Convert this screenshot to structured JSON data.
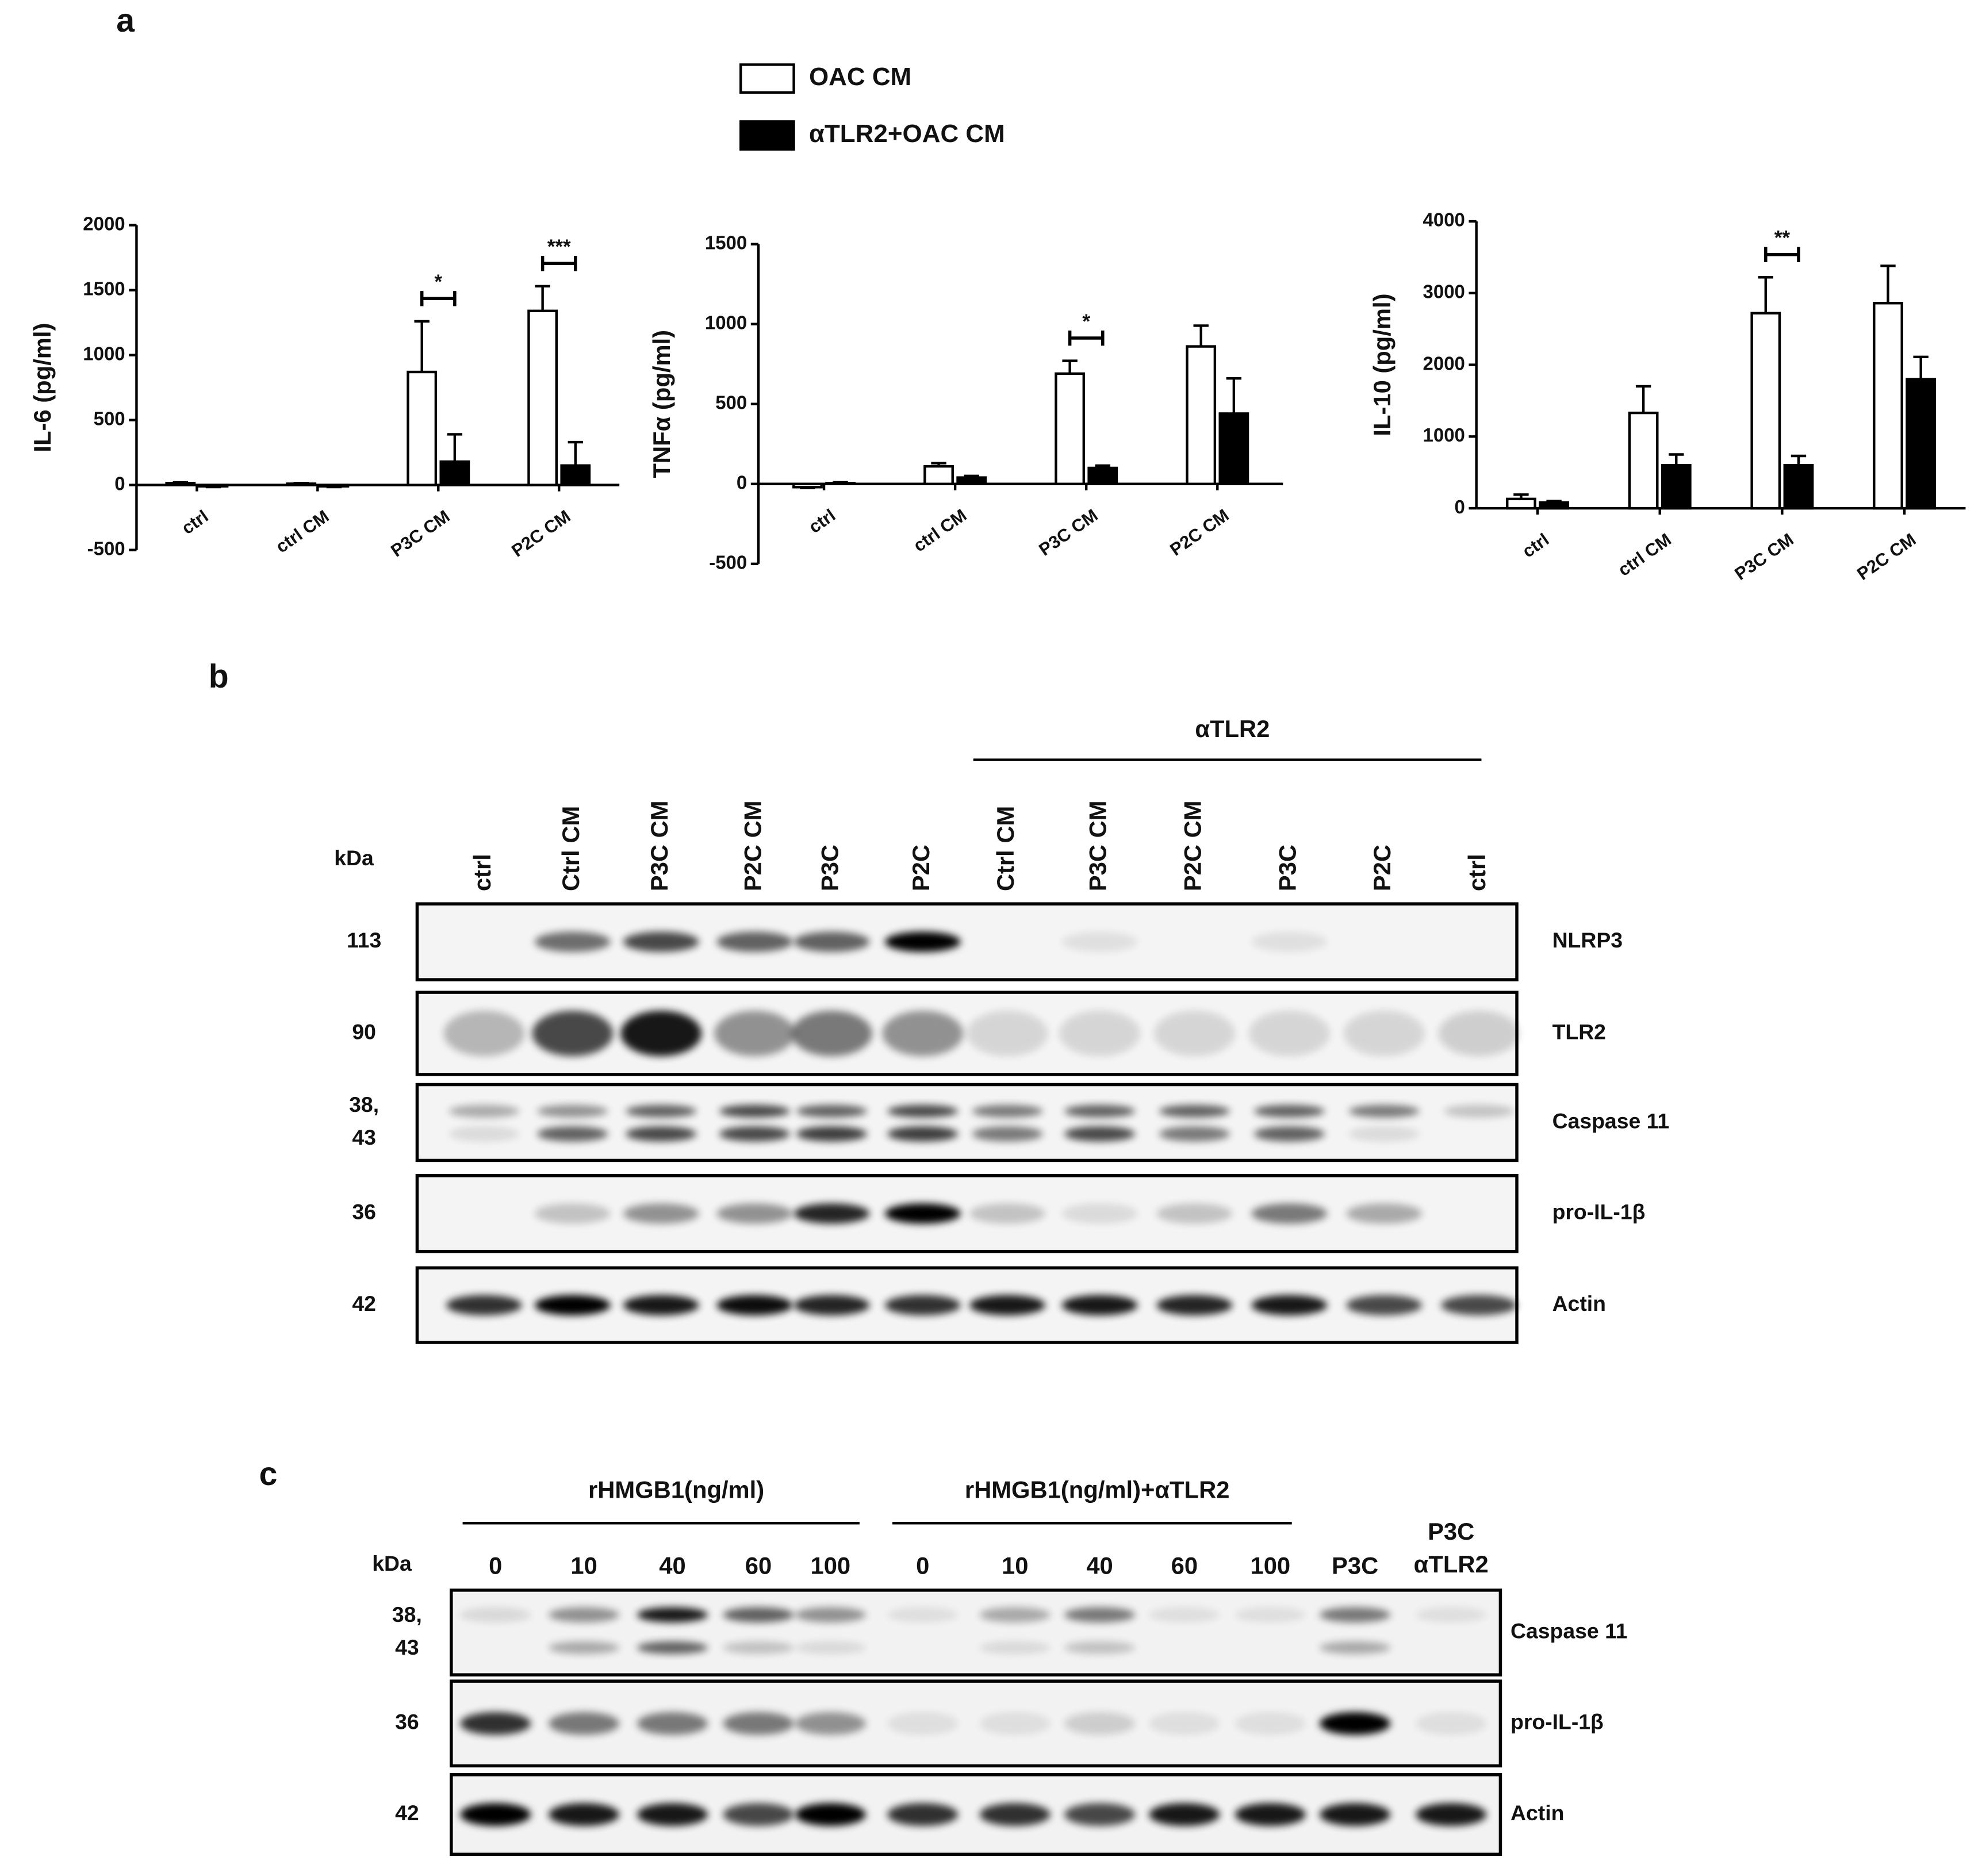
{
  "panels": [
    "a",
    "b",
    "c"
  ],
  "chart_data": [
    {
      "type": "bar",
      "ylabel": "IL-6 (pg/ml)",
      "categories": [
        "ctrl",
        "ctrl CM",
        "P3C CM",
        "P2C CM"
      ],
      "series": [
        {
          "name": "OAC CM",
          "color": "#ffffff",
          "values": [
            15,
            10,
            870,
            1340
          ],
          "errors": [
            5,
            5,
            390,
            190
          ]
        },
        {
          "name": "αTLR2+OAC CM",
          "color": "#000000",
          "values": [
            -10,
            -10,
            180,
            150
          ],
          "errors": [
            5,
            5,
            210,
            180
          ]
        }
      ],
      "ylim": [
        -500,
        2000
      ],
      "yticks": [
        -500,
        0,
        500,
        1000,
        1500,
        2000
      ],
      "annotations": [
        {
          "text": "*",
          "category": "P3C CM"
        },
        {
          "text": "***",
          "category": "P2C CM"
        }
      ]
    },
    {
      "type": "bar",
      "ylabel": "TNFα (pg/ml)",
      "categories": [
        "ctrl",
        "ctrl CM",
        "P3C CM",
        "P2C CM"
      ],
      "series": [
        {
          "color": "#ffffff",
          "values": [
            -20,
            110,
            690,
            860
          ],
          "errors": [
            5,
            20,
            80,
            130
          ]
        },
        {
          "color": "#000000",
          "values": [
            5,
            40,
            100,
            440
          ],
          "errors": [
            5,
            10,
            15,
            220
          ]
        }
      ],
      "ylim": [
        -500,
        1500
      ],
      "yticks": [
        -500,
        0,
        500,
        1000,
        1500
      ],
      "annotations": [
        {
          "text": "*",
          "category": "P3C CM"
        }
      ]
    },
    {
      "type": "bar",
      "ylabel": "IL-10 (pg/ml)",
      "categories": [
        "ctrl",
        "ctrl CM",
        "P3C CM",
        "P2C CM"
      ],
      "series": [
        {
          "color": "#ffffff",
          "values": [
            130,
            1330,
            2720,
            2860
          ],
          "errors": [
            60,
            370,
            500,
            520
          ]
        },
        {
          "color": "#000000",
          "values": [
            80,
            600,
            600,
            1800
          ],
          "errors": [
            20,
            150,
            130,
            310
          ]
        }
      ],
      "ylim": [
        0,
        4000
      ],
      "yticks": [
        0,
        1000,
        2000,
        3000,
        4000
      ],
      "annotations": [
        {
          "text": "**",
          "category": "P3C CM"
        }
      ]
    }
  ],
  "blot_b": {
    "kda_header": "kDa",
    "group_label": "αTLR2",
    "lanes": [
      "ctrl",
      "Ctrl CM",
      "P3C CM",
      "P2C CM",
      "P3C",
      "P2C",
      "Ctrl CM",
      "P3C CM",
      "P2C CM",
      "P3C",
      "P2C",
      "ctrl"
    ],
    "rows": [
      {
        "kda": [
          "113"
        ],
        "label": "NLRP3"
      },
      {
        "kda": [
          "90"
        ],
        "label": "TLR2"
      },
      {
        "kda": [
          "38,",
          "43"
        ],
        "label": "Caspase 11"
      },
      {
        "kda": [
          "36"
        ],
        "label": "pro-IL-1β"
      },
      {
        "kda": [
          "42"
        ],
        "label": "Actin"
      }
    ]
  },
  "blot_c": {
    "kda_header": "kDa",
    "groups": [
      "rHMGB1(ng/ml)",
      "rHMGB1(ng/ml)+αTLR2"
    ],
    "lanes": [
      [
        "0"
      ],
      [
        "10"
      ],
      [
        "40"
      ],
      [
        "60"
      ],
      [
        "100"
      ],
      [
        "0"
      ],
      [
        "10"
      ],
      [
        "40"
      ],
      [
        "60"
      ],
      [
        "100"
      ],
      [
        "P3C"
      ],
      [
        "P3C",
        "αTLR2"
      ]
    ],
    "rows": [
      {
        "kda": [
          "38,",
          "43"
        ],
        "label": "Caspase 11"
      },
      {
        "kda": [
          "36"
        ],
        "label": "pro-IL-1β"
      },
      {
        "kda": [
          "42"
        ],
        "label": "Actin"
      }
    ]
  }
}
